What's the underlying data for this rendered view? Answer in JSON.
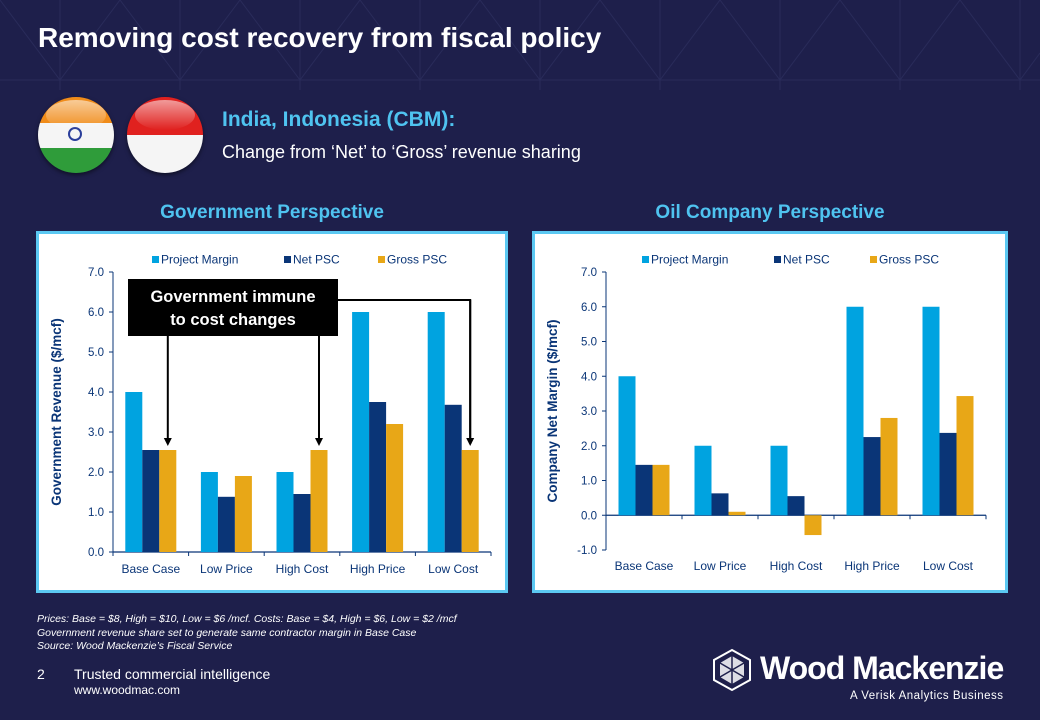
{
  "slide": {
    "title": "Removing cost recovery from fiscal policy",
    "subheading": "India, Indonesia (CBM):",
    "subtext": "Change from ‘Net’ to ‘Gross’ revenue sharing",
    "flags": [
      "India flag",
      "Indonesia flag"
    ]
  },
  "colors": {
    "background": "#1e1f4b",
    "accent": "#4fc3f0",
    "project_margin": "#00a3e0",
    "net_psc": "#0a3577",
    "gross_psc": "#e8a717",
    "axis": "#0a3577"
  },
  "chart_data": [
    {
      "type": "bar",
      "title": "Government Perspective",
      "xlabel": "",
      "ylabel": "Government Revenue ($/mcf)",
      "ylim": [
        0,
        7
      ],
      "yticks": [
        "0.0",
        "1.0",
        "2.0",
        "3.0",
        "4.0",
        "5.0",
        "6.0",
        "7.0"
      ],
      "categories": [
        "Base Case",
        "Low Price",
        "High Cost",
        "High Price",
        "Low Cost"
      ],
      "legend": "top",
      "grid": false,
      "series": [
        {
          "name": "Project Margin",
          "values": [
            4.0,
            2.0,
            2.0,
            6.0,
            6.0
          ]
        },
        {
          "name": "Net PSC",
          "values": [
            2.55,
            1.38,
            1.45,
            3.75,
            3.68
          ]
        },
        {
          "name": "Gross PSC",
          "values": [
            2.55,
            1.9,
            2.55,
            3.2,
            2.55
          ]
        }
      ],
      "annotation": {
        "text_line1": "Government immune",
        "text_line2": "to cost changes",
        "points_to": [
          "Base Case Gross PSC",
          "High Cost Gross PSC",
          "Low Cost Gross PSC"
        ]
      }
    },
    {
      "type": "bar",
      "title": "Oil Company Perspective",
      "xlabel": "",
      "ylabel": "Company Net Margin ($/mcf)",
      "ylim": [
        -1,
        7
      ],
      "yticks": [
        "-1.0",
        "0.0",
        "1.0",
        "2.0",
        "3.0",
        "4.0",
        "5.0",
        "6.0",
        "7.0"
      ],
      "categories": [
        "Base Case",
        "Low Price",
        "High Cost",
        "High Price",
        "Low Cost"
      ],
      "legend": "top",
      "grid": false,
      "series": [
        {
          "name": "Project Margin",
          "values": [
            4.0,
            2.0,
            2.0,
            6.0,
            6.0
          ]
        },
        {
          "name": "Net PSC",
          "values": [
            1.45,
            0.63,
            0.55,
            2.25,
            2.37
          ]
        },
        {
          "name": "Gross PSC",
          "values": [
            1.45,
            0.1,
            -0.57,
            2.8,
            3.43
          ]
        }
      ]
    }
  ],
  "notes": [
    "Prices: Base = $8, High = $10, Low  = $6 /mcf. Costs: Base = $4, High =  $6, Low = $2 /mcf",
    "Government revenue share  set to generate same contractor margin in Base Case",
    "Source: Wood Mackenzie’s Fiscal Service"
  ],
  "footer": {
    "page_number": "2",
    "tagline": "Trusted commercial intelligence",
    "url": "www.woodmac.com",
    "logo_name": "Wood Mackenzie",
    "logo_sub": "A Verisk Analytics Business"
  }
}
